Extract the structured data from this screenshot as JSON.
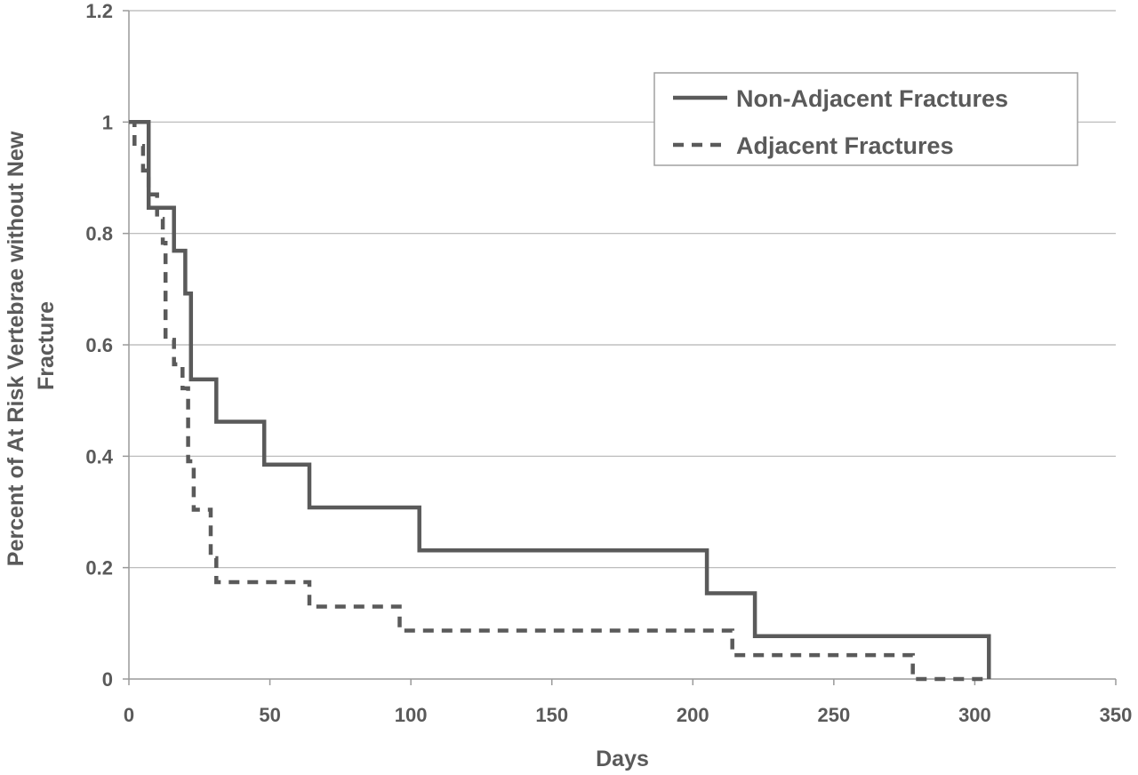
{
  "chart_data": {
    "type": "line",
    "step": true,
    "title": "",
    "xlabel": "Days",
    "ylabel_lines": [
      "Percent of At Risk Vertebrae without New",
      "Fracture"
    ],
    "xlim": [
      0,
      350
    ],
    "ylim": [
      0,
      1.2
    ],
    "xticks": [
      0,
      50,
      100,
      150,
      200,
      250,
      300,
      350
    ],
    "yticks": [
      0,
      0.2,
      0.4,
      0.6,
      0.8,
      1,
      1.2
    ],
    "xtick_labels": [
      "0",
      "50",
      "100",
      "150",
      "200",
      "250",
      "300",
      "350"
    ],
    "ytick_labels": [
      "0",
      "0.2",
      "0.4",
      "0.6",
      "0.8",
      "1",
      "1.2"
    ],
    "grid": "horizontal",
    "legend_position": "top-right",
    "colors": {
      "line": "#5a5a5a",
      "grid": "#b4b4b4",
      "axis": "#9a9a9a",
      "text": "#5a5a5a"
    },
    "series": [
      {
        "name": "Non-Adjacent Fractures",
        "style": "solid",
        "points": [
          [
            0,
            1.0
          ],
          [
            7,
            1.0
          ],
          [
            7,
            0.846
          ],
          [
            16,
            0.846
          ],
          [
            16,
            0.769
          ],
          [
            20,
            0.769
          ],
          [
            20,
            0.692
          ],
          [
            22,
            0.692
          ],
          [
            22,
            0.538
          ],
          [
            31,
            0.538
          ],
          [
            31,
            0.462
          ],
          [
            48,
            0.462
          ],
          [
            48,
            0.385
          ],
          [
            64,
            0.385
          ],
          [
            64,
            0.308
          ],
          [
            103,
            0.308
          ],
          [
            103,
            0.231
          ],
          [
            205,
            0.231
          ],
          [
            205,
            0.154
          ],
          [
            222,
            0.154
          ],
          [
            222,
            0.077
          ],
          [
            305,
            0.077
          ],
          [
            305,
            0.0
          ]
        ]
      },
      {
        "name": "Adjacent Fractures",
        "style": "dashed",
        "points": [
          [
            0,
            1.0
          ],
          [
            2,
            1.0
          ],
          [
            2,
            0.957
          ],
          [
            5,
            0.957
          ],
          [
            5,
            0.913
          ],
          [
            7,
            0.913
          ],
          [
            7,
            0.87
          ],
          [
            10,
            0.87
          ],
          [
            10,
            0.826
          ],
          [
            12,
            0.826
          ],
          [
            12,
            0.783
          ],
          [
            13,
            0.783
          ],
          [
            13,
            0.609
          ],
          [
            16,
            0.609
          ],
          [
            16,
            0.565
          ],
          [
            19,
            0.565
          ],
          [
            19,
            0.522
          ],
          [
            21,
            0.522
          ],
          [
            21,
            0.391
          ],
          [
            23,
            0.391
          ],
          [
            23,
            0.304
          ],
          [
            29,
            0.304
          ],
          [
            29,
            0.217
          ],
          [
            31,
            0.217
          ],
          [
            31,
            0.174
          ],
          [
            64,
            0.174
          ],
          [
            64,
            0.13
          ],
          [
            96,
            0.13
          ],
          [
            96,
            0.087
          ],
          [
            214,
            0.087
          ],
          [
            214,
            0.043
          ],
          [
            278,
            0.043
          ],
          [
            278,
            0.0
          ],
          [
            305,
            0.0
          ]
        ]
      }
    ]
  }
}
